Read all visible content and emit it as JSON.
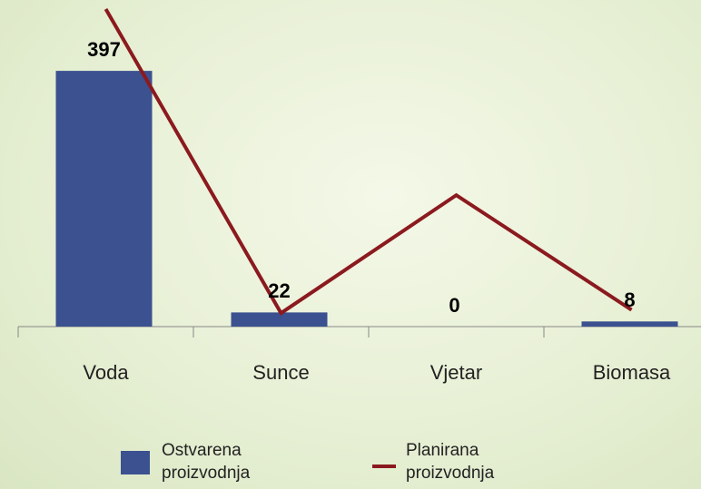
{
  "chart_data": {
    "type": "bar",
    "categories": [
      "Voda",
      "Sunce",
      "Vjetar",
      "Biomasa"
    ],
    "series": [
      {
        "name": "Ostvarena proizvodnja",
        "type": "bar",
        "color": "#3b5190",
        "values": [
          397,
          22,
          0,
          8
        ]
      },
      {
        "name": "Planirana proizvodnja",
        "type": "line",
        "color": "#8b1a1f",
        "values": [
          493,
          21,
          204,
          26
        ]
      }
    ],
    "ylim": [
      0,
      507
    ]
  }
}
